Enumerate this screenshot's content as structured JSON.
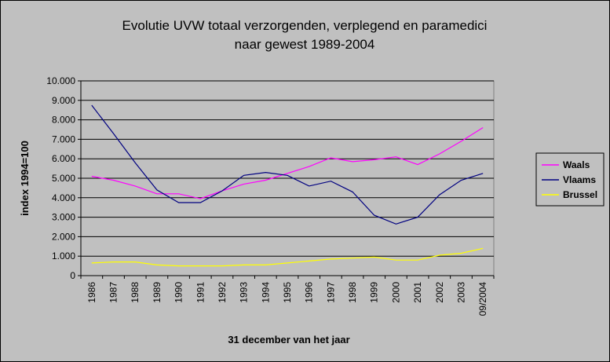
{
  "chart_data": {
    "type": "line",
    "title_line1": "Evolutie UVW totaal verzorgenden, verplegend en paramedici",
    "title_line2": "naar gewest 1989-2004",
    "xlabel": "31 december van het jaar",
    "ylabel": "index 1994=100",
    "categories": [
      "1986",
      "1987",
      "1988",
      "1989",
      "1990",
      "1991",
      "1992",
      "1993",
      "1994",
      "1995",
      "1996",
      "1997",
      "1998",
      "1999",
      "2000",
      "2001",
      "2002",
      "2003",
      "09/2004"
    ],
    "ylim": [
      0,
      10000
    ],
    "yticks": [
      0,
      1000,
      2000,
      3000,
      4000,
      5000,
      6000,
      7000,
      8000,
      9000,
      10000
    ],
    "ytick_labels": [
      "0",
      "1.000",
      "2.000",
      "3.000",
      "4.000",
      "5.000",
      "6.000",
      "7.000",
      "8.000",
      "9.000",
      "10.000"
    ],
    "grid": true,
    "legend_position": "right",
    "plot_background": "#c0c0c0",
    "series": [
      {
        "name": "Waals",
        "color": "#ff00ff",
        "values": [
          5100,
          4900,
          4600,
          4200,
          4200,
          3950,
          4350,
          4700,
          4900,
          5250,
          5600,
          6050,
          5850,
          5950,
          6100,
          5700,
          6250,
          6900,
          7600
        ]
      },
      {
        "name": "Vlaams",
        "color": "#000080",
        "values": [
          8750,
          7300,
          5800,
          4400,
          3750,
          3750,
          4350,
          5150,
          5300,
          5150,
          4600,
          4850,
          4300,
          3100,
          2650,
          3000,
          4150,
          4900,
          5250
        ]
      },
      {
        "name": "Brussel",
        "color": "#ffff00",
        "values": [
          650,
          700,
          700,
          550,
          500,
          500,
          500,
          550,
          550,
          650,
          750,
          850,
          900,
          950,
          800,
          800,
          1050,
          1150,
          1400
        ]
      }
    ]
  }
}
